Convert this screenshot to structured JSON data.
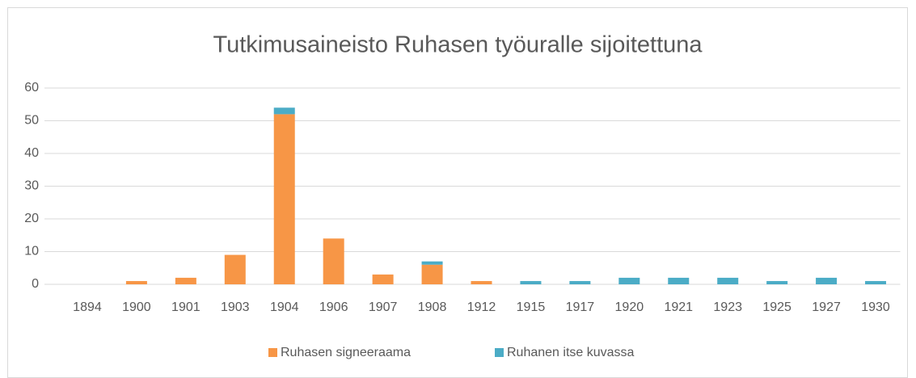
{
  "chart_data": {
    "type": "stacked_bar",
    "title": "Tutkimusaineisto Ruhasen työuralle sijoitettuna",
    "categories": [
      "1894",
      "1900",
      "1901",
      "1903",
      "1904",
      "1906",
      "1907",
      "1908",
      "1912",
      "1915",
      "1917",
      "1920",
      "1921",
      "1923",
      "1925",
      "1927",
      "1930"
    ],
    "series": [
      {
        "name": "Ruhasen signeeraama",
        "color": "#f79646",
        "values": [
          0,
          1,
          2,
          9,
          52,
          14,
          3,
          6,
          1,
          0,
          0,
          0,
          0,
          0,
          0,
          0,
          0
        ]
      },
      {
        "name": "Ruhanen itse kuvassa",
        "color": "#4bacc6",
        "values": [
          0,
          0,
          0,
          0,
          2,
          0,
          0,
          1,
          0,
          1,
          1,
          2,
          2,
          2,
          1,
          2,
          1
        ]
      }
    ],
    "ylim": [
      0,
      60
    ],
    "yticks": [
      0,
      10,
      20,
      30,
      40,
      50,
      60
    ],
    "grid": true,
    "legend": "bottom"
  }
}
